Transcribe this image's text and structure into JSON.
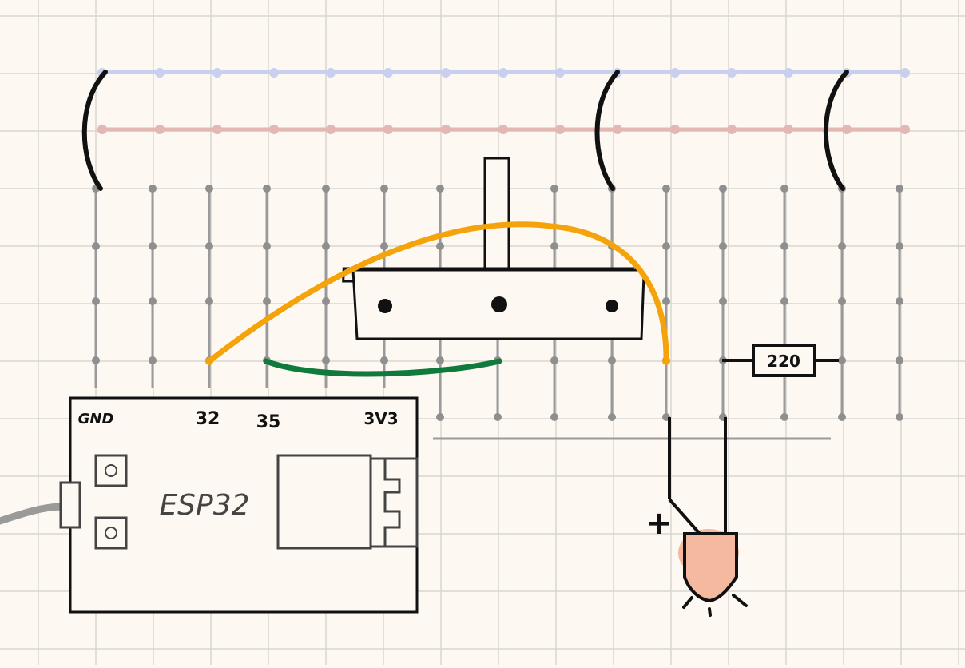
{
  "board": {
    "paper_color": "#fdf9f2",
    "grid_color": "#d9d6cf",
    "rail_blue": "#c9cfee",
    "rail_red": "#e2b7b4",
    "column_color": "#9a9a9a"
  },
  "esp32": {
    "name": "ESP32",
    "pins": {
      "gnd": "GND",
      "pin32": "32",
      "pin35": "35",
      "v33": "3V3"
    }
  },
  "resistor": {
    "value": "220"
  },
  "led": {
    "polarity": "+",
    "color": "#f5b9a0"
  },
  "wires": {
    "orange": "#f5a30a",
    "green": "#0f7a3c"
  },
  "icons": [
    "bracket-icon",
    "potentiometer-icon",
    "resistor-icon",
    "led-icon",
    "usb-cable-icon"
  ]
}
